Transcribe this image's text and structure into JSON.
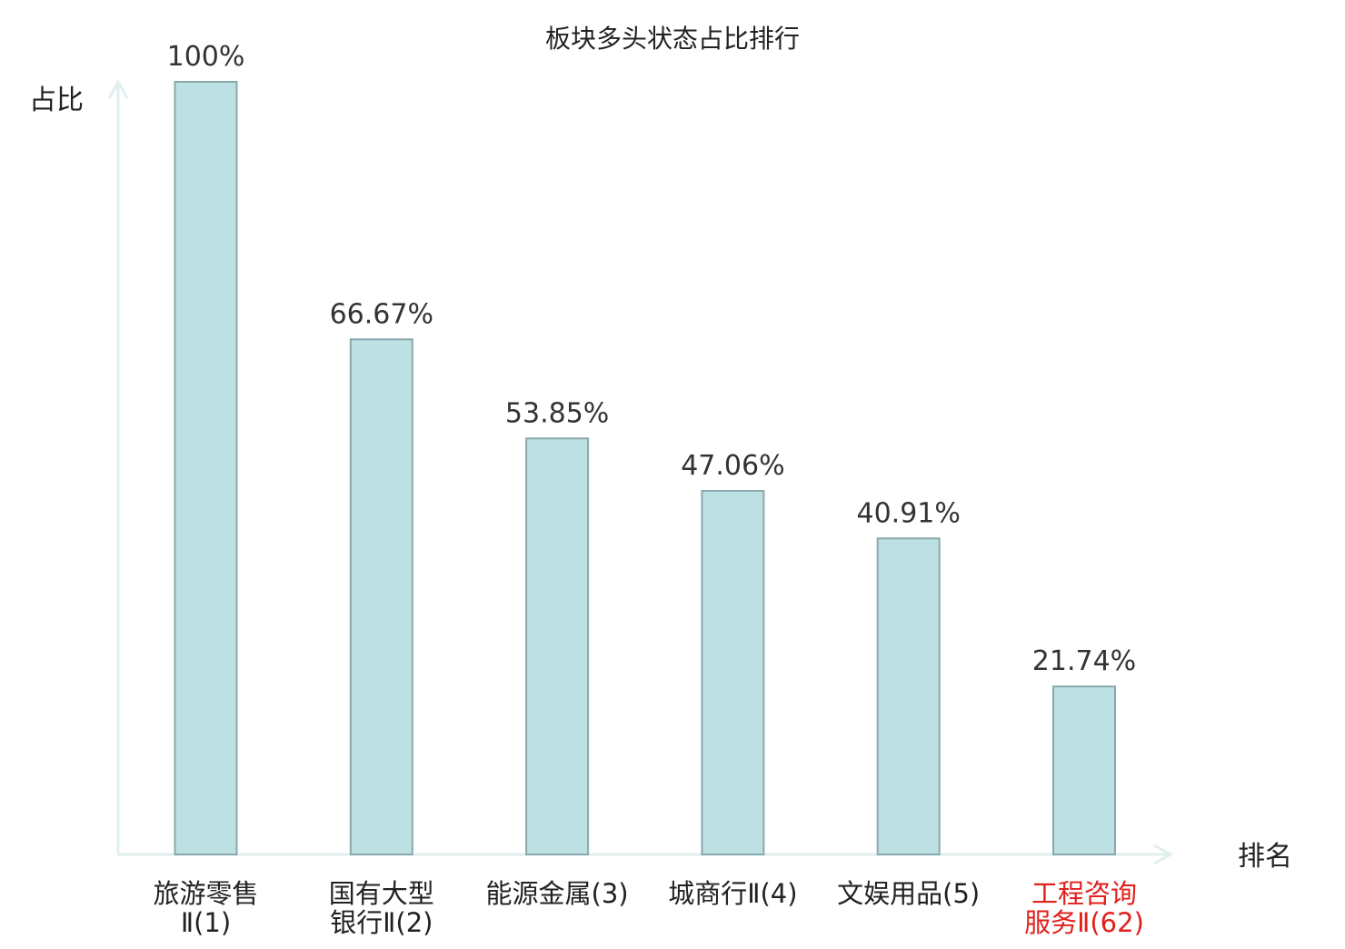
{
  "chart_data": {
    "type": "bar",
    "title": "板块多头状态占比排行",
    "xlabel": "排名",
    "ylabel": "占比",
    "ylim": [
      0,
      100
    ],
    "grid": false,
    "categories": [
      [
        "旅游零售",
        "Ⅱ(1)"
      ],
      [
        "国有大型",
        "银行Ⅱ(2)"
      ],
      [
        "能源金属(3)"
      ],
      [
        "城商行Ⅱ(4)"
      ],
      [
        "文娱用品(5)"
      ],
      [
        "工程咨询",
        "服务Ⅱ(62)"
      ]
    ],
    "values": [
      100,
      66.67,
      53.85,
      47.06,
      40.91,
      21.74
    ],
    "value_labels": [
      "100%",
      "66.67%",
      "53.85%",
      "47.06%",
      "40.91%",
      "21.74%"
    ],
    "highlight_index": 5,
    "colors": {
      "bar_fill": "#bde0e3",
      "bar_stroke": "#8aa9ad",
      "axis": "#dff0ee",
      "text": "#222222",
      "value_text": "#333333",
      "highlight_text": "#e0201b"
    }
  }
}
